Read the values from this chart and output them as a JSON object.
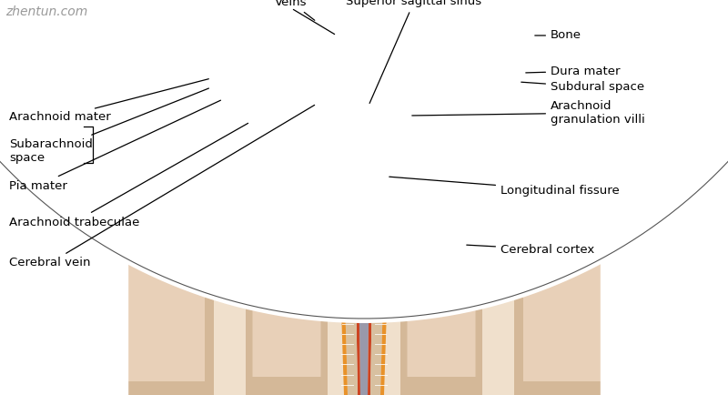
{
  "watermark": "zhentun.com",
  "background_color": "#ffffff",
  "labels": {
    "veins": "Veins",
    "superior_sagittal_sinus": "Superior sagittal sinus",
    "bone": "Bone",
    "dura_mater": "Dura mater",
    "subdural_space": "Subdural space",
    "arachnoid_mater": "Arachnoid mater",
    "subarachnoid_space": "Subarachnoid\nspace",
    "pia_mater": "Pia mater",
    "arachnoid_trabeculae": "Arachnoid trabeculae",
    "cerebral_vein": "Cerebral vein",
    "arachnoid_granulation_villi": "Arachnoid\ngranulation villi",
    "longitudinal_fissure": "Longitudinal fissure",
    "cerebral_cortex": "Cerebral cortex"
  },
  "colors": {
    "bone_light": "#d4c9aa",
    "bone_mid": "#c0b090",
    "bone_dark": "#a89870",
    "dura_blue_light": "#8899cc",
    "dura_blue_mid": "#5566bb",
    "dura_blue_dark": "#334499",
    "subdural_red": "#cc6644",
    "arachnoid_tan": "#c8a870",
    "sas_beige": "#d8c0a0",
    "pia_orange": "#e8922a",
    "pia_red": "#cc4422",
    "brain_tan": "#d4b898",
    "brain_light": "#e8d0b8",
    "brain_inner_light": "#f0e0cc",
    "sinus_blue": "#2244aa",
    "sinus_dark": "#1a3388",
    "vein_blue": "#2244aa",
    "fissure_gray": "#9999aa",
    "fissure_dark": "#888899",
    "trabeculae_white": "#ffffff",
    "gyrus_tan": "#c8a880"
  },
  "figsize": [
    8.0,
    4.34
  ],
  "dpi": 100
}
